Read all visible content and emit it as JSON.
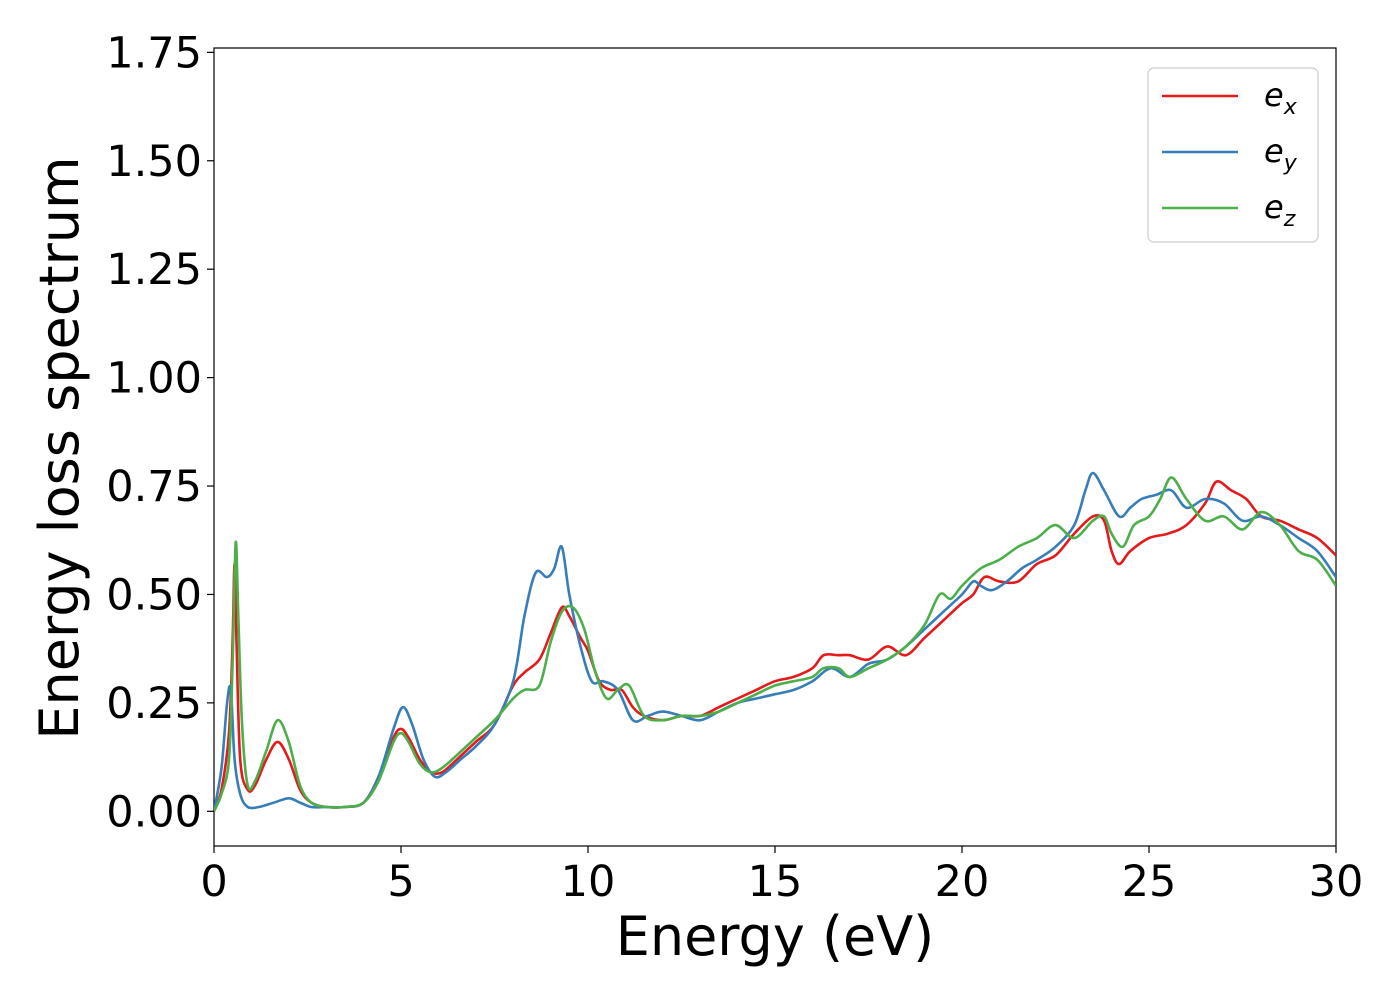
{
  "chart_data": {
    "type": "line",
    "title": "",
    "xlabel": "Energy (eV)",
    "ylabel": "Energy loss spectrum",
    "xlim": [
      0,
      30
    ],
    "ylim": [
      -0.08,
      1.76
    ],
    "xticks": [
      0,
      5,
      10,
      15,
      20,
      25,
      30
    ],
    "xtick_labels": [
      "0",
      "5",
      "10",
      "15",
      "20",
      "25",
      "30"
    ],
    "yticks": [
      0.0,
      0.25,
      0.5,
      0.75,
      1.0,
      1.25,
      1.5,
      1.75
    ],
    "ytick_labels": [
      "0.00",
      "0.25",
      "0.50",
      "0.75",
      "1.00",
      "1.25",
      "1.50",
      "1.75"
    ],
    "grid": false,
    "legend": {
      "position": "top-right",
      "entries": [
        {
          "main": "e",
          "sub": "x",
          "color": "#e41a1c"
        },
        {
          "main": "e",
          "sub": "y",
          "color": "#377eb8"
        },
        {
          "main": "e",
          "sub": "z",
          "color": "#4daf4a"
        }
      ]
    },
    "series": [
      {
        "legend_index": 0,
        "color": "#e41a1c",
        "x": [
          0,
          0.2,
          0.4,
          0.5,
          0.55,
          0.6,
          0.7,
          0.9,
          1.1,
          1.4,
          1.7,
          2.0,
          2.3,
          2.6,
          3.0,
          3.5,
          4.0,
          4.4,
          4.8,
          5.0,
          5.2,
          5.5,
          5.8,
          6.1,
          6.5,
          7.0,
          7.5,
          8.0,
          8.3,
          8.7,
          9.0,
          9.3,
          9.5,
          9.8,
          10.0,
          10.3,
          10.6,
          10.9,
          11.2,
          11.5,
          12.0,
          12.5,
          13.0,
          13.5,
          14.0,
          14.5,
          15.0,
          15.5,
          16.0,
          16.3,
          16.7,
          17.0,
          17.5,
          18.0,
          18.5,
          19.0,
          19.5,
          20.0,
          20.3,
          20.6,
          21.0,
          21.5,
          22.0,
          22.5,
          23.0,
          23.5,
          23.8,
          24.0,
          24.2,
          24.5,
          25.0,
          25.5,
          26.0,
          26.5,
          26.8,
          27.2,
          27.6,
          28.0,
          28.5,
          29.0,
          29.5,
          30.0
        ],
        "y": [
          0.0,
          0.05,
          0.18,
          0.4,
          0.57,
          0.4,
          0.12,
          0.05,
          0.06,
          0.12,
          0.16,
          0.12,
          0.05,
          0.02,
          0.01,
          0.01,
          0.02,
          0.08,
          0.17,
          0.19,
          0.17,
          0.12,
          0.09,
          0.09,
          0.12,
          0.16,
          0.2,
          0.29,
          0.32,
          0.35,
          0.41,
          0.47,
          0.45,
          0.4,
          0.37,
          0.3,
          0.28,
          0.28,
          0.24,
          0.22,
          0.21,
          0.22,
          0.22,
          0.24,
          0.26,
          0.28,
          0.3,
          0.31,
          0.33,
          0.36,
          0.36,
          0.36,
          0.35,
          0.38,
          0.36,
          0.4,
          0.44,
          0.48,
          0.5,
          0.54,
          0.53,
          0.53,
          0.57,
          0.59,
          0.64,
          0.68,
          0.67,
          0.6,
          0.57,
          0.6,
          0.63,
          0.64,
          0.66,
          0.71,
          0.76,
          0.74,
          0.72,
          0.68,
          0.67,
          0.65,
          0.63,
          0.59
        ]
      },
      {
        "legend_index": 1,
        "color": "#377eb8",
        "x": [
          0,
          0.2,
          0.35,
          0.45,
          0.55,
          0.7,
          0.9,
          1.2,
          1.6,
          2.0,
          2.3,
          2.6,
          3.0,
          3.5,
          4.0,
          4.4,
          4.8,
          5.05,
          5.3,
          5.6,
          5.9,
          6.2,
          6.6,
          7.0,
          7.5,
          8.0,
          8.3,
          8.6,
          8.9,
          9.1,
          9.3,
          9.5,
          9.8,
          10.1,
          10.4,
          10.8,
          11.2,
          11.6,
          12.0,
          12.5,
          13.0,
          13.5,
          14.0,
          14.5,
          15.0,
          15.5,
          16.0,
          16.5,
          17.0,
          17.5,
          18.0,
          18.5,
          19.0,
          19.5,
          20.0,
          20.3,
          20.5,
          20.8,
          21.2,
          21.6,
          22.0,
          22.5,
          23.0,
          23.3,
          23.5,
          23.8,
          24.2,
          24.5,
          24.8,
          25.2,
          25.6,
          26.0,
          26.5,
          27.0,
          27.5,
          28.0,
          28.5,
          29.0,
          29.5,
          30.0
        ],
        "y": [
          0.0,
          0.1,
          0.25,
          0.28,
          0.12,
          0.04,
          0.01,
          0.01,
          0.02,
          0.03,
          0.02,
          0.01,
          0.01,
          0.01,
          0.02,
          0.08,
          0.19,
          0.24,
          0.2,
          0.12,
          0.08,
          0.09,
          0.12,
          0.15,
          0.2,
          0.3,
          0.45,
          0.55,
          0.54,
          0.56,
          0.61,
          0.5,
          0.38,
          0.3,
          0.3,
          0.28,
          0.21,
          0.22,
          0.23,
          0.22,
          0.21,
          0.23,
          0.25,
          0.26,
          0.27,
          0.28,
          0.3,
          0.33,
          0.31,
          0.34,
          0.35,
          0.38,
          0.42,
          0.46,
          0.5,
          0.53,
          0.52,
          0.51,
          0.53,
          0.56,
          0.58,
          0.61,
          0.66,
          0.74,
          0.78,
          0.74,
          0.68,
          0.7,
          0.72,
          0.73,
          0.74,
          0.7,
          0.72,
          0.71,
          0.67,
          0.68,
          0.66,
          0.63,
          0.6,
          0.54
        ]
      },
      {
        "legend_index": 2,
        "color": "#4daf4a",
        "x": [
          0,
          0.2,
          0.4,
          0.5,
          0.58,
          0.65,
          0.75,
          0.9,
          1.1,
          1.4,
          1.7,
          2.0,
          2.3,
          2.6,
          3.0,
          3.5,
          4.0,
          4.4,
          4.8,
          5.0,
          5.2,
          5.5,
          5.8,
          6.1,
          6.5,
          7.0,
          7.5,
          8.0,
          8.3,
          8.7,
          9.0,
          9.3,
          9.6,
          9.9,
          10.2,
          10.5,
          10.8,
          11.1,
          11.5,
          12.0,
          12.5,
          13.0,
          13.5,
          14.0,
          14.5,
          15.0,
          15.5,
          16.0,
          16.3,
          16.7,
          17.0,
          17.5,
          18.0,
          18.5,
          19.0,
          19.4,
          19.7,
          20.0,
          20.5,
          21.0,
          21.5,
          22.0,
          22.5,
          23.0,
          23.5,
          23.8,
          24.0,
          24.3,
          24.6,
          25.0,
          25.3,
          25.6,
          26.0,
          26.5,
          27.0,
          27.5,
          28.0,
          28.5,
          29.0,
          29.5,
          30.0
        ],
        "y": [
          0.0,
          0.04,
          0.12,
          0.35,
          0.62,
          0.45,
          0.2,
          0.06,
          0.07,
          0.14,
          0.21,
          0.16,
          0.06,
          0.02,
          0.01,
          0.01,
          0.02,
          0.07,
          0.16,
          0.18,
          0.16,
          0.11,
          0.09,
          0.1,
          0.13,
          0.17,
          0.21,
          0.26,
          0.28,
          0.29,
          0.39,
          0.46,
          0.47,
          0.42,
          0.32,
          0.26,
          0.28,
          0.29,
          0.22,
          0.21,
          0.22,
          0.22,
          0.23,
          0.25,
          0.27,
          0.29,
          0.3,
          0.31,
          0.33,
          0.33,
          0.31,
          0.33,
          0.35,
          0.38,
          0.43,
          0.5,
          0.49,
          0.52,
          0.56,
          0.58,
          0.61,
          0.63,
          0.66,
          0.63,
          0.67,
          0.68,
          0.64,
          0.61,
          0.66,
          0.68,
          0.72,
          0.77,
          0.72,
          0.67,
          0.68,
          0.65,
          0.69,
          0.66,
          0.6,
          0.58,
          0.52
        ]
      }
    ]
  }
}
